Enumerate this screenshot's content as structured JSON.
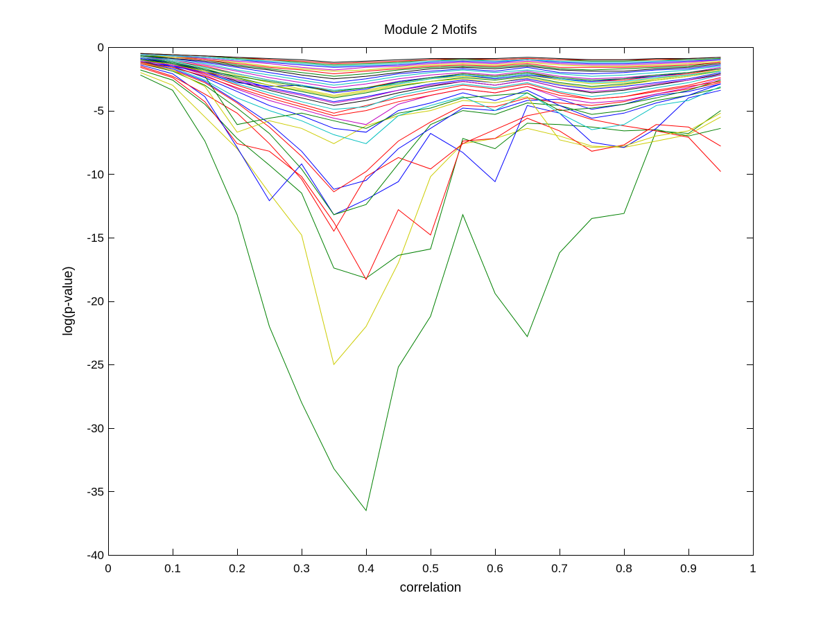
{
  "chart_data": {
    "type": "line",
    "title": "Module 2 Motifs",
    "xlabel": "correlation",
    "ylabel": "log(p-value)",
    "xlim": [
      0,
      1
    ],
    "ylim": [
      -40,
      0
    ],
    "xticks": [
      0,
      0.1,
      0.2,
      0.3,
      0.4,
      0.5,
      0.6,
      0.7,
      0.8,
      0.9,
      1
    ],
    "xtick_labels": [
      "0",
      "0.1",
      "0.2",
      "0.3",
      "0.4",
      "0.5",
      "0.6",
      "0.7",
      "0.8",
      "0.9",
      "1"
    ],
    "yticks": [
      0,
      -5,
      -10,
      -15,
      -20,
      -25,
      -30,
      -35,
      -40
    ],
    "ytick_labels": [
      "0",
      "-5",
      "-10",
      "-15",
      "-20",
      "-25",
      "-30",
      "-35",
      "-40"
    ],
    "grid": false,
    "box": true,
    "x": [
      0.05,
      0.1,
      0.15,
      0.2,
      0.25,
      0.3,
      0.35,
      0.4,
      0.45,
      0.5,
      0.55,
      0.6,
      0.65,
      0.7,
      0.75,
      0.8,
      0.85,
      0.9,
      0.95
    ],
    "series": [
      {
        "color": "#008000",
        "values": [
          -2.2,
          -3.4,
          -7.4,
          -13.2,
          -22.0,
          -28.0,
          -33.2,
          -36.5,
          -25.2,
          -21.2,
          -13.2,
          -19.4,
          -22.8,
          -16.2,
          -13.5,
          -13.1,
          -6.6,
          -6.8,
          -5.0
        ]
      },
      {
        "color": "#cccc00",
        "values": [
          -2.0,
          -3.0,
          -5.5,
          -8.0,
          -11.5,
          -14.8,
          -25.0,
          -22.0,
          -17.0,
          -10.2,
          -7.6,
          -7.2,
          -6.4,
          -7.0,
          -7.8,
          -7.9,
          -7.4,
          -6.9,
          -5.5
        ]
      },
      {
        "color": "#008000",
        "values": [
          -1.8,
          -2.6,
          -4.5,
          -7.2,
          -9.3,
          -11.5,
          -17.4,
          -18.2,
          -16.4,
          -15.9,
          -7.2,
          -8.0,
          -6.0,
          -6.1,
          -6.3,
          -6.6,
          -6.5,
          -7.0,
          -6.4
        ]
      },
      {
        "color": "#ff0000",
        "values": [
          -1.6,
          -2.4,
          -4.3,
          -7.6,
          -8.2,
          -10.2,
          -13.8,
          -18.3,
          -12.8,
          -14.8,
          -7.4,
          -7.2,
          -5.6,
          -6.6,
          -8.2,
          -7.7,
          -6.1,
          -6.3,
          -7.8
        ]
      },
      {
        "color": "#0000ff",
        "values": [
          -1.4,
          -2.1,
          -3.9,
          -7.9,
          -12.1,
          -9.2,
          -13.2,
          -12.0,
          -10.6,
          -6.8,
          -8.3,
          -10.6,
          -4.6,
          -5.2,
          -7.5,
          -7.9,
          -6.4,
          -4.0,
          -3.4
        ]
      },
      {
        "color": "#ff0000",
        "values": [
          -1.5,
          -2.3,
          -3.7,
          -5.2,
          -7.6,
          -10.4,
          -14.5,
          -10.2,
          -8.7,
          -9.6,
          -7.6,
          -6.5,
          -5.4,
          -4.9,
          -5.7,
          -6.2,
          -6.6,
          -7.1,
          -9.8
        ]
      },
      {
        "color": "#008000",
        "values": [
          -1.3,
          -1.9,
          -3.0,
          -4.8,
          -6.8,
          -9.6,
          -13.2,
          -12.4,
          -9.2,
          -6.1,
          -5.0,
          -5.3,
          -4.4,
          -4.6,
          -5.3,
          -5.0,
          -4.2,
          -3.8,
          -3.2
        ]
      },
      {
        "color": "#0000ff",
        "values": [
          -1.2,
          -1.7,
          -2.7,
          -4.3,
          -6.0,
          -8.2,
          -11.2,
          -10.5,
          -8.0,
          -6.4,
          -4.8,
          -5.0,
          -4.2,
          -4.1,
          -4.9,
          -4.5,
          -3.8,
          -3.5,
          -2.9
        ]
      },
      {
        "color": "#ff0000",
        "values": [
          -1.3,
          -1.8,
          -2.8,
          -4.4,
          -6.3,
          -8.6,
          -11.4,
          -9.8,
          -7.4,
          -5.9,
          -4.6,
          -4.7,
          -4.0,
          -4.4,
          -4.6,
          -4.3,
          -3.7,
          -3.3,
          -2.8
        ]
      },
      {
        "color": "#cccc00",
        "values": [
          -1.2,
          -1.8,
          -3.1,
          -6.7,
          -5.8,
          -6.4,
          -7.6,
          -6.2,
          -5.4,
          -5.0,
          -4.2,
          -4.4,
          -3.9,
          -7.3,
          -7.9,
          -7.8,
          -7.0,
          -6.6,
          -5.2
        ]
      },
      {
        "color": "#00bfbf",
        "values": [
          -1.1,
          -1.6,
          -2.6,
          -4.0,
          -5.0,
          -5.8,
          -6.9,
          -7.6,
          -5.4,
          -4.6,
          -3.9,
          -5.0,
          -3.6,
          -5.2,
          -6.5,
          -6.1,
          -4.6,
          -4.2,
          -3.1
        ]
      },
      {
        "color": "#0000ff",
        "values": [
          -1.0,
          -1.5,
          -2.4,
          -3.5,
          -4.6,
          -5.4,
          -6.4,
          -6.7,
          -5.0,
          -4.4,
          -3.6,
          -4.2,
          -3.4,
          -4.6,
          -5.6,
          -5.2,
          -4.4,
          -3.8,
          -2.9
        ]
      },
      {
        "color": "#008000",
        "values": [
          -1.1,
          -1.6,
          -2.3,
          -6.1,
          -5.6,
          -5.2,
          -5.8,
          -6.4,
          -5.2,
          -4.8,
          -4.0,
          -3.8,
          -3.6,
          -5.0,
          -4.8,
          -4.5,
          -4.0,
          -3.4,
          -2.6
        ]
      },
      {
        "color": "#bf00bf",
        "values": [
          -1.0,
          -1.4,
          -2.2,
          -3.3,
          -4.2,
          -4.9,
          -5.6,
          -6.1,
          -4.5,
          -3.8,
          -3.3,
          -3.6,
          -3.1,
          -4.0,
          -4.4,
          -4.2,
          -3.7,
          -3.2,
          -2.5
        ]
      },
      {
        "color": "#ff0000",
        "values": [
          -1.0,
          -1.4,
          -2.1,
          -3.0,
          -3.8,
          -4.5,
          -5.2,
          -4.6,
          -4.0,
          -3.5,
          -3.0,
          -3.3,
          -2.9,
          -3.6,
          -4.1,
          -3.9,
          -3.4,
          -3.0,
          -2.4
        ]
      },
      {
        "color": "#00bfbf",
        "values": [
          -0.9,
          -1.3,
          -2.0,
          -2.9,
          -3.6,
          -4.3,
          -4.9,
          -4.7,
          -3.8,
          -3.3,
          -2.9,
          -3.2,
          -2.8,
          -3.5,
          -3.9,
          -3.6,
          -3.2,
          -2.8,
          -2.2
        ]
      },
      {
        "color": "#000000",
        "values": [
          -0.9,
          -1.3,
          -1.9,
          -2.7,
          -3.4,
          -4.0,
          -4.6,
          -4.2,
          -3.6,
          -3.1,
          -2.7,
          -3.0,
          -2.6,
          -3.2,
          -3.6,
          -3.4,
          -3.0,
          -2.6,
          -2.1
        ]
      },
      {
        "color": "#0000ff",
        "values": [
          -0.9,
          -1.2,
          -1.8,
          -2.5,
          -3.2,
          -3.7,
          -4.3,
          -3.9,
          -3.4,
          -2.9,
          -2.6,
          -2.8,
          -2.5,
          -3.0,
          -3.3,
          -3.1,
          -2.8,
          -2.5,
          -2.0
        ]
      },
      {
        "color": "#008000",
        "values": [
          -0.8,
          -1.2,
          -1.7,
          -2.4,
          -3.0,
          -3.5,
          -4.0,
          -3.6,
          -3.1,
          -2.7,
          -2.4,
          -2.6,
          -2.3,
          -2.8,
          -3.1,
          -2.9,
          -2.6,
          -2.3,
          -1.9
        ]
      },
      {
        "color": "#cccc00",
        "values": [
          -0.8,
          -1.1,
          -1.6,
          -2.2,
          -2.8,
          -3.3,
          -3.8,
          -3.4,
          -2.9,
          -2.5,
          -2.3,
          -2.5,
          -2.2,
          -2.6,
          -2.9,
          -2.8,
          -2.5,
          -2.2,
          -1.8
        ]
      },
      {
        "color": "#ff0000",
        "values": [
          -0.8,
          -1.1,
          -1.5,
          -2.1,
          -2.6,
          -3.0,
          -3.5,
          -3.2,
          -2.7,
          -2.4,
          -2.1,
          -2.3,
          -2.0,
          -2.5,
          -2.7,
          -2.6,
          -2.3,
          -2.1,
          -1.7
        ]
      },
      {
        "color": "#bf00bf",
        "values": [
          -0.8,
          -1.0,
          -1.4,
          -1.9,
          -2.4,
          -2.8,
          -3.2,
          -2.9,
          -2.5,
          -2.2,
          -2.0,
          -2.2,
          -1.9,
          -2.3,
          -2.5,
          -2.4,
          -2.2,
          -2.0,
          -1.6
        ]
      },
      {
        "color": "#00bfbf",
        "values": [
          -0.7,
          -1.0,
          -1.3,
          -1.8,
          -2.2,
          -2.6,
          -3.0,
          -2.7,
          -2.3,
          -2.0,
          -1.8,
          -2.0,
          -1.8,
          -2.1,
          -2.3,
          -2.2,
          -2.0,
          -1.8,
          -1.5
        ]
      },
      {
        "color": "#0000ff",
        "values": [
          -0.7,
          -0.9,
          -1.2,
          -1.6,
          -2.0,
          -2.4,
          -2.8,
          -2.5,
          -2.1,
          -1.9,
          -1.7,
          -1.9,
          -1.6,
          -2.0,
          -2.1,
          -2.0,
          -1.8,
          -1.7,
          -1.4
        ]
      },
      {
        "color": "#000000",
        "values": [
          -0.7,
          -0.9,
          -1.1,
          -1.5,
          -1.8,
          -2.2,
          -2.5,
          -2.3,
          -2.0,
          -1.7,
          -1.6,
          -1.7,
          -1.5,
          -1.8,
          -1.9,
          -1.9,
          -1.7,
          -1.6,
          -1.3
        ]
      },
      {
        "color": "#008000",
        "values": [
          -0.7,
          -0.8,
          -1.0,
          -1.4,
          -1.7,
          -2.0,
          -2.3,
          -2.1,
          -1.8,
          -1.6,
          -1.5,
          -1.6,
          -1.4,
          -1.7,
          -1.8,
          -1.7,
          -1.6,
          -1.5,
          -1.2
        ]
      },
      {
        "color": "#ff0000",
        "values": [
          -0.6,
          -0.8,
          -1.0,
          -1.3,
          -1.6,
          -1.8,
          -2.1,
          -1.9,
          -1.7,
          -1.5,
          -1.4,
          -1.5,
          -1.3,
          -1.6,
          -1.6,
          -1.6,
          -1.5,
          -1.4,
          -1.2
        ]
      },
      {
        "color": "#cccc00",
        "values": [
          -0.6,
          -0.8,
          -0.9,
          -1.2,
          -1.5,
          -1.7,
          -1.9,
          -1.8,
          -1.6,
          -1.4,
          -1.3,
          -1.4,
          -1.2,
          -1.4,
          -1.5,
          -1.5,
          -1.4,
          -1.3,
          -1.1
        ]
      },
      {
        "color": "#bf00bf",
        "values": [
          -0.6,
          -0.7,
          -0.9,
          -1.1,
          -1.3,
          -1.6,
          -1.8,
          -1.6,
          -1.5,
          -1.3,
          -1.2,
          -1.3,
          -1.1,
          -1.3,
          -1.4,
          -1.4,
          -1.3,
          -1.2,
          -1.0
        ]
      },
      {
        "color": "#0000ff",
        "values": [
          -0.6,
          -0.7,
          -0.8,
          -1.0,
          -1.2,
          -1.4,
          -1.6,
          -1.5,
          -1.4,
          -1.2,
          -1.1,
          -1.2,
          -1.0,
          -1.2,
          -1.3,
          -1.3,
          -1.2,
          -1.1,
          -1.0
        ]
      },
      {
        "color": "#00bfbf",
        "values": [
          -0.6,
          -0.7,
          -0.8,
          -1.0,
          -1.1,
          -1.3,
          -1.5,
          -1.4,
          -1.3,
          -1.1,
          -1.0,
          -1.1,
          -1.0,
          -1.1,
          -1.2,
          -1.2,
          -1.1,
          -1.0,
          -0.9
        ]
      },
      {
        "color": "#008000",
        "values": [
          -0.5,
          -0.6,
          -0.7,
          -0.9,
          -1.0,
          -1.2,
          -1.4,
          -1.3,
          -1.2,
          -1.0,
          -1.0,
          -1.0,
          -0.9,
          -1.0,
          -1.1,
          -1.1,
          -1.0,
          -1.0,
          -0.9
        ]
      },
      {
        "color": "#ff0000",
        "values": [
          -0.5,
          -0.6,
          -0.7,
          -0.8,
          -1.0,
          -1.1,
          -1.3,
          -1.2,
          -1.1,
          -1.0,
          -0.9,
          -1.0,
          -0.9,
          -1.0,
          -1.0,
          -1.0,
          -1.0,
          -0.9,
          -0.8
        ]
      },
      {
        "color": "#000000",
        "values": [
          -0.5,
          -0.6,
          -0.7,
          -0.8,
          -0.9,
          -1.0,
          -1.2,
          -1.1,
          -1.0,
          -0.9,
          -0.9,
          -0.9,
          -0.8,
          -0.9,
          -1.0,
          -1.0,
          -0.9,
          -0.9,
          -0.8
        ]
      },
      {
        "color": "#0000ff",
        "values": [
          -1.2,
          -1.5,
          -2.0,
          -2.8,
          -3.1,
          -3.0,
          -3.6,
          -3.3,
          -2.7,
          -2.4,
          -2.2,
          -2.5,
          -2.2,
          -2.5,
          -2.7,
          -2.5,
          -2.3,
          -2.0,
          -1.7
        ]
      },
      {
        "color": "#cccc00",
        "values": [
          -1.0,
          -1.4,
          -1.9,
          -2.5,
          -3.0,
          -3.4,
          -3.9,
          -3.5,
          -3.0,
          -2.7,
          -2.5,
          -2.8,
          -2.4,
          -2.9,
          -3.2,
          -3.0,
          -2.6,
          -2.3,
          -1.9
        ]
      },
      {
        "color": "#bf00bf",
        "values": [
          -1.1,
          -1.4,
          -2.0,
          -2.6,
          -3.3,
          -3.8,
          -4.4,
          -4.0,
          -3.4,
          -3.0,
          -2.7,
          -3.0,
          -2.6,
          -3.2,
          -3.5,
          -3.3,
          -2.9,
          -2.6,
          -2.2
        ]
      },
      {
        "color": "#00bfbf",
        "values": [
          -0.8,
          -1.1,
          -1.6,
          -2.1,
          -2.6,
          -3.0,
          -3.4,
          -3.2,
          -2.9,
          -2.5,
          -2.2,
          -2.4,
          -2.1,
          -2.5,
          -2.8,
          -2.7,
          -2.4,
          -2.2,
          -1.9
        ]
      },
      {
        "color": "#ff0000",
        "values": [
          -1.2,
          -1.6,
          -2.3,
          -3.2,
          -4.0,
          -4.7,
          -5.4,
          -5.0,
          -4.3,
          -3.8,
          -3.3,
          -3.6,
          -3.1,
          -3.8,
          -4.1,
          -3.9,
          -3.5,
          -3.1,
          -2.7
        ]
      },
      {
        "color": "#008000",
        "values": [
          -1.0,
          -1.3,
          -1.8,
          -2.3,
          -2.7,
          -3.1,
          -3.5,
          -3.2,
          -2.8,
          -2.4,
          -2.1,
          -2.3,
          -2.0,
          -2.4,
          -2.6,
          -2.5,
          -2.2,
          -2.0,
          -1.7
        ]
      }
    ]
  }
}
